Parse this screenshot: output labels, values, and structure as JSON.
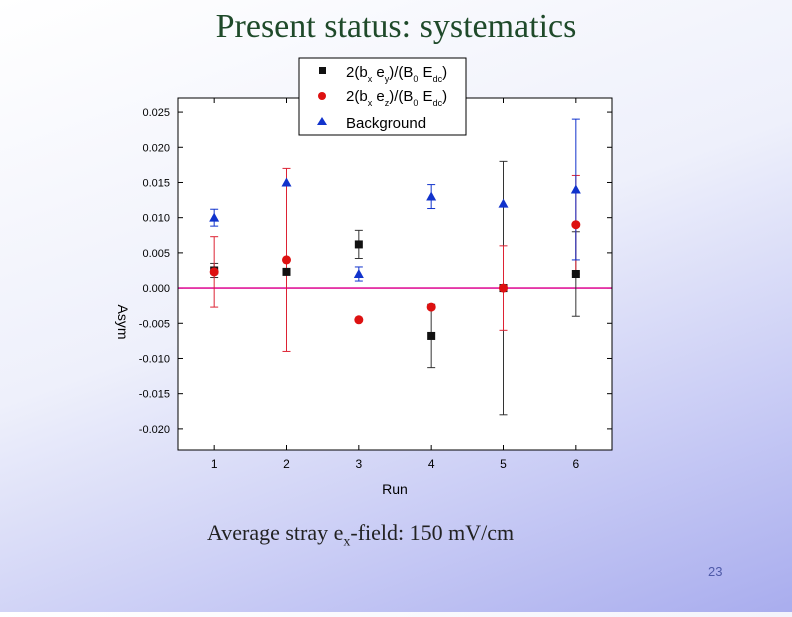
{
  "slide": {
    "title": "Present status: systematics",
    "footer": {
      "prefix": "Average stray e",
      "subscript": "x",
      "suffix": "-field: 150 mV/cm"
    },
    "page_number": "23"
  },
  "chart_data": {
    "type": "scatter",
    "title": "",
    "xlabel": "Run",
    "ylabel": "Asym",
    "x": [
      1,
      2,
      3,
      4,
      5,
      6
    ],
    "xlim": [
      0.5,
      6.5
    ],
    "ylim": [
      -0.023,
      0.027
    ],
    "xticks": [
      1,
      2,
      3,
      4,
      5,
      6
    ],
    "yticks": [
      0.025,
      0.02,
      0.015,
      0.01,
      0.005,
      0.0,
      -0.005,
      -0.01,
      -0.015,
      -0.02
    ],
    "ytick_labels": [
      "0.025",
      "0.020",
      "0.015",
      "0.010",
      "0.005",
      "0.000",
      "-0.005",
      "-0.010",
      "-0.015",
      "-0.020"
    ],
    "reference_line": {
      "y": 0.0,
      "color": "#e0189a"
    },
    "legend_position": "top-center",
    "series": [
      {
        "name": "2(bx ey)/(B0 Edc)",
        "legend": {
          "a": "2(b",
          "s1": "x",
          "b": " e",
          "s2": "y",
          "c": ")/(B",
          "s3": "0",
          "d": " E",
          "s4": "dc",
          "e": ")"
        },
        "marker": "square",
        "color": "#111111",
        "err_color": "#333333",
        "values": [
          0.0025,
          0.0023,
          0.0062,
          -0.0068,
          0.0,
          0.002
        ],
        "errors": [
          0.001,
          0.0,
          0.002,
          0.0045,
          0.018,
          0.006
        ]
      },
      {
        "name": "2(bx ez)/(B0 Edc)",
        "legend": {
          "a": "2(b",
          "s1": "x",
          "b": " e",
          "s2": "z",
          "c": ")/(B",
          "s3": "0",
          "d": " E",
          "s4": "dc",
          "e": ")"
        },
        "marker": "circle",
        "color": "#dd1111",
        "err_color": "#dd2233",
        "values": [
          0.0023,
          0.004,
          -0.0045,
          -0.0027,
          0.0,
          0.009
        ],
        "errors": [
          0.005,
          0.013,
          0.0,
          0.0,
          0.006,
          0.007
        ]
      },
      {
        "name": "Background",
        "legend": {
          "a": "Background",
          "s1": "",
          "b": "",
          "s2": "",
          "c": "",
          "s3": "",
          "d": "",
          "s4": "",
          "e": ""
        },
        "marker": "triangle",
        "color": "#1133cc",
        "err_color": "#1133cc",
        "values": [
          0.01,
          0.015,
          0.002,
          0.013,
          0.012,
          0.014
        ],
        "errors": [
          0.0012,
          0.0,
          0.001,
          0.0017,
          0.0,
          0.01
        ]
      }
    ]
  }
}
